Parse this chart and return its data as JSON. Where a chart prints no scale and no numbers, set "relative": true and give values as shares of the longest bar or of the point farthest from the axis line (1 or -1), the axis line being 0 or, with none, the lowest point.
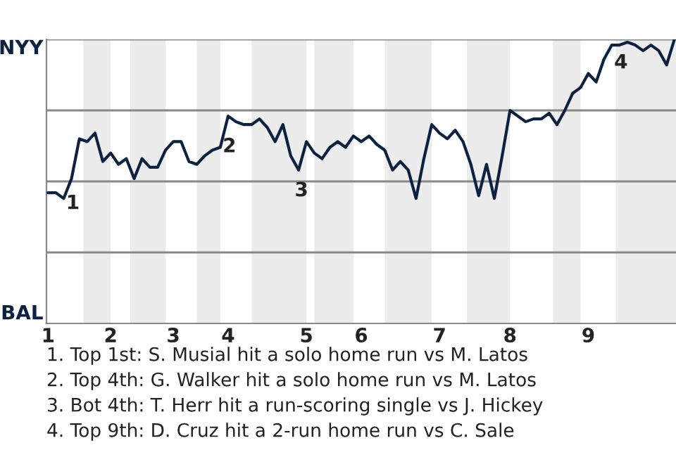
{
  "chart_data": {
    "type": "line",
    "relative": true,
    "categories": [
      "1",
      null,
      null,
      null,
      null,
      null,
      null,
      null,
      "2",
      null,
      null,
      null,
      null,
      null,
      null,
      null,
      "3",
      null,
      null,
      null,
      null,
      null,
      null,
      "4",
      null,
      null,
      null,
      null,
      null,
      null,
      null,
      null,
      null,
      "5",
      null,
      null,
      null,
      null,
      null,
      null,
      "6",
      null,
      null,
      null,
      null,
      null,
      null,
      null,
      null,
      null,
      "7",
      null,
      null,
      null,
      null,
      null,
      null,
      null,
      null,
      "8",
      null,
      null,
      null,
      null,
      null,
      null,
      null,
      null,
      null,
      "9",
      null,
      null,
      null,
      null,
      null,
      null,
      null,
      null,
      null,
      null,
      null
    ],
    "series": [
      {
        "color": "#0d2240",
        "values": [
          0.46,
          0.46,
          0.44,
          0.51,
          0.65,
          0.64,
          0.67,
          0.57,
          0.6,
          0.56,
          0.58,
          0.51,
          0.58,
          0.55,
          0.55,
          0.61,
          0.64,
          0.64,
          0.57,
          0.56,
          0.59,
          0.61,
          0.62,
          0.73,
          0.71,
          0.7,
          0.7,
          0.72,
          0.69,
          0.64,
          0.7,
          0.59,
          0.54,
          0.64,
          0.6,
          0.58,
          0.62,
          0.64,
          0.62,
          0.66,
          0.64,
          0.66,
          0.63,
          0.61,
          0.54,
          0.57,
          0.54,
          0.44,
          0.58,
          0.7,
          0.67,
          0.65,
          0.68,
          0.64,
          0.56,
          0.45,
          0.56,
          0.44,
          0.59,
          0.75,
          0.73,
          0.71,
          0.72,
          0.72,
          0.74,
          0.7,
          0.75,
          0.81,
          0.83,
          0.88,
          0.85,
          0.93,
          0.98,
          0.98,
          0.99,
          0.98,
          0.96,
          0.98,
          0.96,
          0.91,
          1.0
        ]
      }
    ],
    "grid": "y",
    "marker": "none",
    "line_style": "solid",
    "annotations": [
      "NYY",
      "BAL",
      "1",
      "2",
      "3",
      "4",
      "1. Top 1st: S. Musial hit a solo home run vs M. Latos",
      "2. Top 4th: G. Walker hit a solo home run vs M. Latos",
      "3. Bot 4th: T. Herr hit a run-scoring single vs J. Hickey",
      "4. Top 9th: D. Cruz hit a 2-run home run vs C. Sale"
    ]
  }
}
